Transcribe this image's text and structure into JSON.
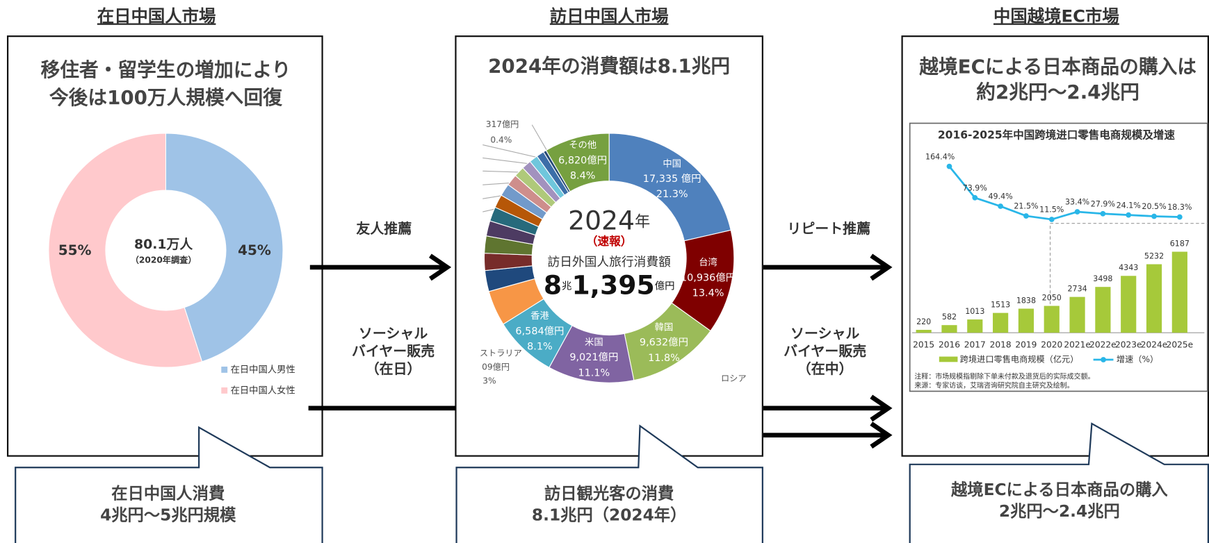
{
  "sections": [
    {
      "header": "在日中国人市場",
      "headline": [
        "移住者・留学生の増加により",
        "今後は100万人規模へ回復"
      ],
      "callout": [
        "在日中国人消費",
        "4兆円～5兆円規模"
      ]
    },
    {
      "header": "訪日中国人市場",
      "headline": [
        "2024年の消費額は8.1兆円"
      ],
      "callout": [
        "訪日観光客の消費",
        "8.1兆円（2024年）"
      ]
    },
    {
      "header": "中国越境EC市場",
      "headline": [
        "越境ECによる日本商品の購入は",
        "約2兆円～2.4兆円"
      ],
      "callout": [
        "越境ECによる日本商品の購入",
        "2兆円～2.4兆円"
      ]
    }
  ],
  "arrows": [
    {
      "label": [
        "友人推薦"
      ]
    },
    {
      "label": [
        "ソーシャル",
        "バイヤー販売",
        "（在日）"
      ]
    },
    {
      "label": [
        "リピート推薦"
      ]
    },
    {
      "label": [
        "ソーシャル",
        "バイヤー販売",
        "（在中）"
      ]
    }
  ],
  "resident_chart": {
    "type": "donut",
    "center": [
      "80.1万人",
      "（2020年調査）"
    ],
    "categories": [
      "在日中国人男性",
      "在日中国人女性"
    ],
    "values": [
      45,
      55
    ],
    "value_labels": [
      "45%",
      "55%"
    ],
    "colors": [
      "#9fc3e7",
      "#ffc9cc"
    ]
  },
  "visitor_chart": {
    "type": "donut",
    "center": {
      "year": "2024",
      "year_unit": "年",
      "note": "（速報）",
      "label": "訪日外国人旅行消費額",
      "trillion": "8",
      "trillion_unit": "兆",
      "hundred_million": "1,395",
      "hundred_million_unit": "億円"
    },
    "categories": [
      "中国",
      "台湾",
      "韓国",
      "米国",
      "香港",
      null,
      null,
      null,
      null,
      null,
      null,
      null,
      null,
      null,
      null,
      null,
      null,
      null,
      null,
      "その他"
    ],
    "values": [
      17335,
      10936,
      9632,
      9021,
      6584,
      3700,
      2200,
      1800,
      1800,
      1600,
      1500,
      1400,
      1300,
      1200,
      1100,
      1000,
      900,
      800,
      317,
      6820
    ],
    "value_labels": [
      "17,335 億円",
      "10,936億円",
      "9,632億円",
      "9,021億円",
      "6,584億円",
      null,
      null,
      null,
      null,
      null,
      null,
      null,
      null,
      null,
      null,
      null,
      null,
      null,
      null,
      "6,820億円"
    ],
    "share_labels": [
      "21.3%",
      "13.4%",
      "11.8%",
      "11.1%",
      "8.1%",
      null,
      null,
      null,
      null,
      null,
      null,
      null,
      null,
      null,
      null,
      null,
      null,
      null,
      null,
      "8.4%"
    ],
    "colors": [
      "#4f81bd",
      "#7f0000",
      "#9bbb59",
      "#8064a2",
      "#4bacc6",
      "#f79646",
      "#1f497d",
      "#772c2a",
      "#5f7530",
      "#4d3b62",
      "#276a7c",
      "#b65708",
      "#729aca",
      "#ce8e8c",
      "#afc97a",
      "#a292be",
      "#6fc6dc",
      "#3c6ea8",
      "#254a76",
      "#76a040"
    ],
    "fragments": [
      "317億円",
      "0.4%",
      "ストラリア",
      "09億円",
      "3%",
      "ロシア"
    ]
  },
  "ec_chart": {
    "type": "bar-line",
    "title": "2016-2025年中国跨境进口零售电商规模及增速",
    "categories": [
      "2015",
      "2016",
      "2017",
      "2018",
      "2019",
      "2020",
      "2021e",
      "2022e",
      "2023e",
      "2024e",
      "2025e"
    ],
    "series": [
      {
        "name": "跨境进口零售电商规模（亿元）",
        "color": "#a6c93a",
        "values": [
          220,
          582,
          1013,
          1513,
          1838,
          2050,
          2734,
          3498,
          4343,
          5232,
          6187
        ]
      },
      {
        "name": "增速（%）",
        "color": "#29b6e8",
        "axis": "y2",
        "values": [
          null,
          164.4,
          73.9,
          49.4,
          21.5,
          11.5,
          33.4,
          27.9,
          24.1,
          20.5,
          18.3
        ],
        "value_labels": [
          null,
          "164.4%",
          "73.9%",
          "49.4%",
          "21.5%",
          "11.5%",
          "33.4%",
          "27.9%",
          "24.1%",
          "20.5%",
          "18.3%"
        ]
      }
    ],
    "ylim": [
      0,
      7000
    ],
    "y2lim": [
      0,
      200
    ],
    "notes": [
      "注释：市场规模指剔除下单未付款及退货后的实际成交额。",
      "来源：专家访谈，艾瑞咨询研究院自主研究及绘制。"
    ]
  }
}
